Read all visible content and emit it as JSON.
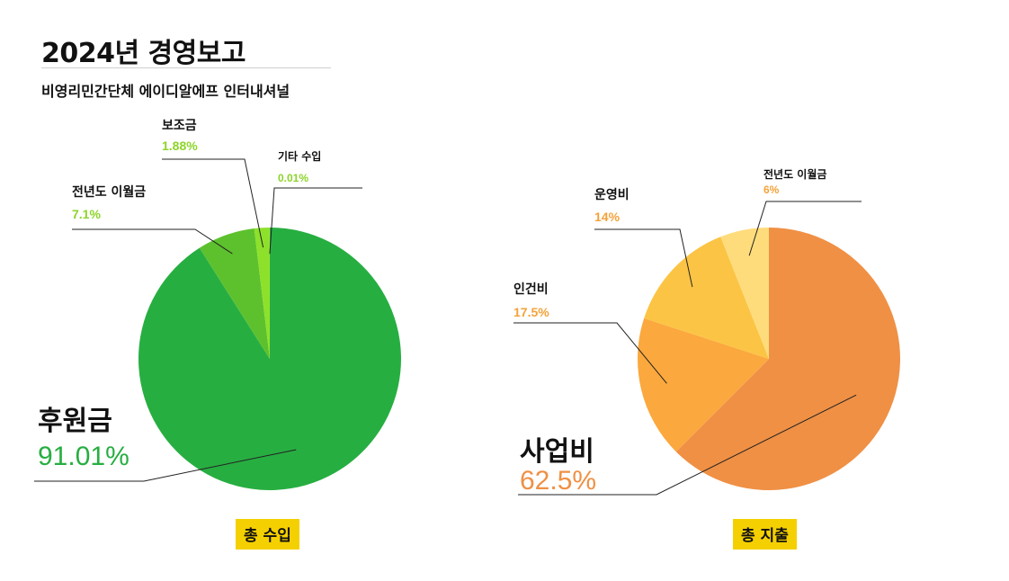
{
  "header": {
    "title": "2024년 경영보고",
    "subtitle": "비영리민간단체 에이디알에프 인터내셔널"
  },
  "chart_data": [
    {
      "type": "pie",
      "caption": "총 수입",
      "slices": [
        {
          "label": "후원금",
          "value": 91.01,
          "display": "91.01%",
          "color": "#27ae41"
        },
        {
          "label": "전년도 이월금",
          "value": 7.1,
          "display": "7.1%",
          "color": "#5dc12e"
        },
        {
          "label": "보조금",
          "value": 1.88,
          "display": "1.88%",
          "color": "#8de12a"
        },
        {
          "label": "기타 수입",
          "value": 0.01,
          "display": "0.01%",
          "color": "#cdee6a"
        }
      ],
      "label_color": "#8dd42a",
      "main_label_color": "#27ae41"
    },
    {
      "type": "pie",
      "caption": "총 지출",
      "slices": [
        {
          "label": "사업비",
          "value": 62.5,
          "display": "62.5%",
          "color": "#ef9045"
        },
        {
          "label": "인건비",
          "value": 17.5,
          "display": "17.5%",
          "color": "#fba83e"
        },
        {
          "label": "운영비",
          "value": 14,
          "display": "14%",
          "color": "#fcc444"
        },
        {
          "label": "전년도 이월금",
          "value": 6,
          "display": "6%",
          "color": "#fedc7c"
        }
      ],
      "label_color": "#f5a23a",
      "main_label_color": "#ef9045"
    }
  ]
}
